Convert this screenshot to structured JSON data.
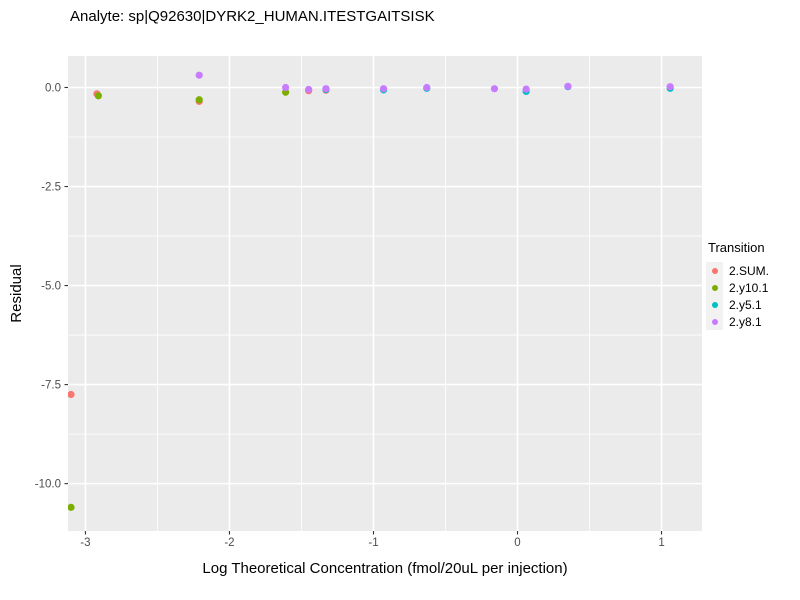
{
  "chart_data": {
    "type": "scatter",
    "title": "Analyte: sp|Q92630|DYRK2_HUMAN.ITESTGAITSISK",
    "xlabel": "Log Theoretical Concentration (fmol/20uL per injection)",
    "ylabel": "Residual",
    "xlim": [
      -3.121,
      1.281
    ],
    "ylim": [
      -11.196,
      0.795
    ],
    "x_ticks": [
      -3,
      -2,
      -1,
      0,
      1
    ],
    "x_tick_labels": [
      "-3",
      "-2",
      "-1",
      "0",
      "1"
    ],
    "y_ticks": [
      0,
      -2.5,
      -5,
      -7.5,
      -10
    ],
    "y_tick_labels": [
      "0.0",
      "-2.5",
      "-5.0",
      "-7.5",
      "-10.0"
    ],
    "x_minor_ticks": [
      -2.5,
      -1.5,
      -0.5,
      0.5
    ],
    "y_minor_ticks": [
      -1.25,
      -3.75,
      -6.25,
      -8.75
    ],
    "grid": {
      "major_color": "#FFFFFF",
      "minor_color": "#FFFFFF",
      "panel_background": "#EBEBEB"
    },
    "tick_color": "#333333",
    "tick_label_color": "#4D4D4D",
    "point_radius": 3.6,
    "legend": {
      "title": "Transition",
      "position": "right",
      "entries": [
        {
          "label": "2.SUM.",
          "color": "#F8766D"
        },
        {
          "label": "2.y10.1",
          "color": "#7CAE00"
        },
        {
          "label": "2.y5.1",
          "color": "#00BFC4"
        },
        {
          "label": "2.y8.1",
          "color": "#C77CFF"
        }
      ]
    },
    "series": [
      {
        "name": "2.SUM.",
        "color": "#F8766D",
        "points": [
          [
            -3.1,
            -7.75
          ],
          [
            -2.92,
            -0.16
          ],
          [
            -2.21,
            -0.35
          ],
          [
            -1.45,
            -0.08
          ],
          [
            -1.33,
            -0.07
          ]
        ]
      },
      {
        "name": "2.y10.1",
        "color": "#7CAE00",
        "points": [
          [
            -3.1,
            -10.6
          ],
          [
            -2.91,
            -0.21
          ],
          [
            -2.21,
            -0.31
          ],
          [
            -1.61,
            -0.12
          ]
        ]
      },
      {
        "name": "2.y5.1",
        "color": "#00BFC4",
        "points": [
          [
            -1.33,
            -0.05
          ],
          [
            -0.93,
            -0.06
          ],
          [
            -0.63,
            -0.02
          ],
          [
            0.06,
            -0.1
          ],
          [
            0.35,
            0.02
          ],
          [
            1.06,
            -0.02
          ]
        ]
      },
      {
        "name": "2.y8.1",
        "color": "#C77CFF",
        "points": [
          [
            -2.21,
            0.31
          ],
          [
            -1.61,
            0.0
          ],
          [
            -1.45,
            -0.05
          ],
          [
            -1.33,
            -0.03
          ],
          [
            -0.93,
            -0.03
          ],
          [
            -0.63,
            0.0
          ],
          [
            -0.16,
            -0.03
          ],
          [
            0.06,
            -0.04
          ],
          [
            0.35,
            0.03
          ],
          [
            1.06,
            0.02
          ]
        ]
      }
    ]
  }
}
